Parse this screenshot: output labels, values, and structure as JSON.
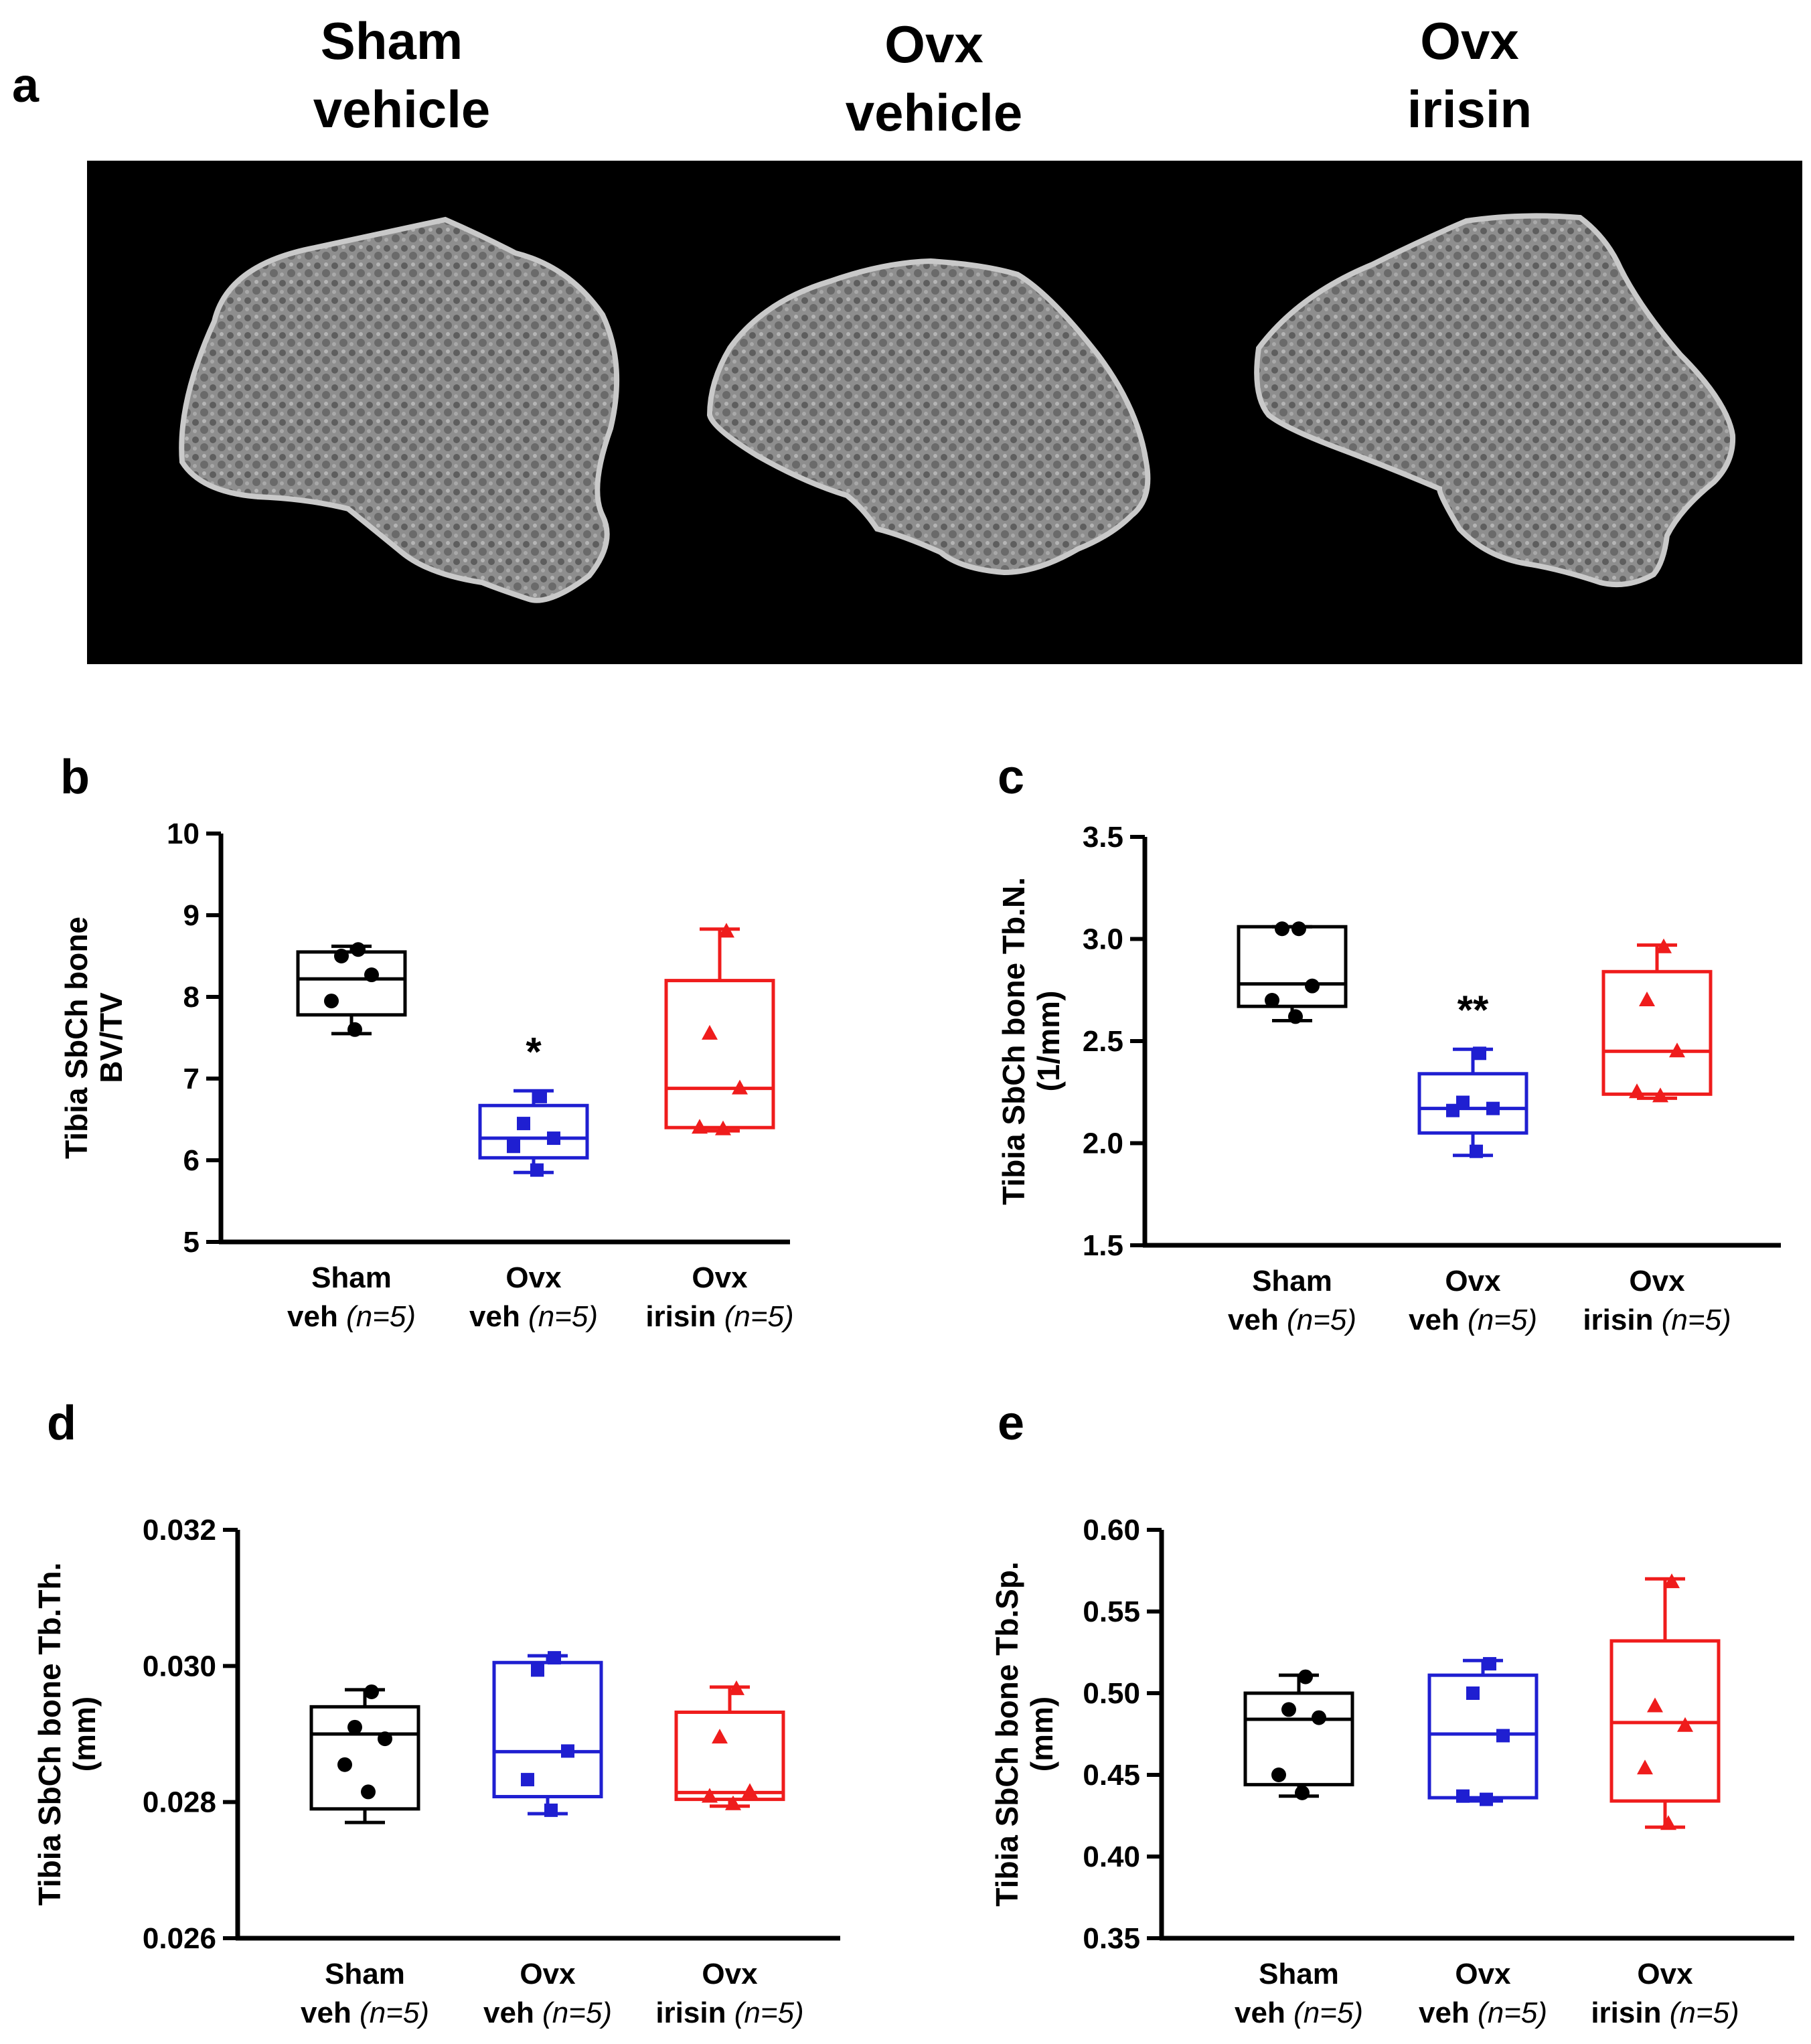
{
  "panel_a": {
    "letter": "a",
    "columns": [
      {
        "line1": "Sham",
        "line2": "vehicle"
      },
      {
        "line1": "Ovx",
        "line2": "vehicle"
      },
      {
        "line1": "Ovx",
        "line2": "irisin"
      }
    ]
  },
  "colors": {
    "sham": "#000000",
    "ovx_veh": "#1f1fd1",
    "ovx_irisin": "#ef1c1c"
  },
  "chart_data": [
    {
      "id": "b",
      "letter": "b",
      "type": "box",
      "ylabel_lines": [
        "Tibia SbCh bone",
        "BV/TV"
      ],
      "ylim": [
        5,
        10
      ],
      "yticks": [
        5,
        6,
        7,
        8,
        9,
        10
      ],
      "ytick_labels": [
        "5",
        "6",
        "7",
        "8",
        "9",
        "10"
      ],
      "groups": [
        {
          "line1": "Sham",
          "line2": "veh",
          "n": "(n=5)",
          "color": "#000000",
          "marker": "circle",
          "box": {
            "min": 7.55,
            "q1": 7.78,
            "median": 8.22,
            "q3": 8.55,
            "max": 8.62
          },
          "points": [
            8.58,
            8.5,
            8.27,
            7.95,
            7.6
          ],
          "annotation": ""
        },
        {
          "line1": "Ovx",
          "line2": "veh",
          "n": "(n=5)",
          "color": "#1f1fd1",
          "marker": "square",
          "box": {
            "min": 5.85,
            "q1": 6.03,
            "median": 6.27,
            "q3": 6.67,
            "max": 6.85
          },
          "points": [
            6.78,
            6.45,
            6.27,
            6.17,
            5.88
          ],
          "annotation": "*"
        },
        {
          "line1": "Ovx",
          "line2": "irisin",
          "n": "(n=5)",
          "color": "#ef1c1c",
          "marker": "triangle",
          "box": {
            "min": 6.36,
            "q1": 6.4,
            "median": 6.88,
            "q3": 8.2,
            "max": 8.83
          },
          "points": [
            8.8,
            7.55,
            6.88,
            6.4,
            6.38
          ],
          "annotation": ""
        }
      ]
    },
    {
      "id": "c",
      "letter": "c",
      "type": "box",
      "ylabel_lines": [
        "Tibia SbCh bone Tb.N.",
        "(1/mm)"
      ],
      "ylim": [
        1.5,
        3.5
      ],
      "yticks": [
        1.5,
        2.0,
        2.5,
        3.0,
        3.5
      ],
      "ytick_labels": [
        "1.5",
        "2.0",
        "2.5",
        "3.0",
        "3.5"
      ],
      "groups": [
        {
          "line1": "Sham",
          "line2": "veh",
          "n": "(n=5)",
          "color": "#000000",
          "marker": "circle",
          "box": {
            "min": 2.6,
            "q1": 2.67,
            "median": 2.78,
            "q3": 3.06,
            "max": 3.06
          },
          "points": [
            3.05,
            3.05,
            2.77,
            2.7,
            2.62
          ],
          "annotation": ""
        },
        {
          "line1": "Ovx",
          "line2": "veh",
          "n": "(n=5)",
          "color": "#1f1fd1",
          "marker": "square",
          "box": {
            "min": 1.94,
            "q1": 2.05,
            "median": 2.17,
            "q3": 2.34,
            "max": 2.46
          },
          "points": [
            2.44,
            2.2,
            2.17,
            2.16,
            1.96
          ],
          "annotation": "**"
        },
        {
          "line1": "Ovx",
          "line2": "irisin",
          "n": "(n=5)",
          "color": "#ef1c1c",
          "marker": "triangle",
          "box": {
            "min": 2.22,
            "q1": 2.24,
            "median": 2.45,
            "q3": 2.84,
            "max": 2.97
          },
          "points": [
            2.96,
            2.7,
            2.45,
            2.25,
            2.23
          ],
          "annotation": ""
        }
      ]
    },
    {
      "id": "d",
      "letter": "d",
      "type": "box",
      "ylabel_lines": [
        "Tibia SbCh bone Tb.Th.",
        "(mm)"
      ],
      "ylim": [
        0.026,
        0.032
      ],
      "yticks": [
        0.026,
        0.028,
        0.03,
        0.032
      ],
      "ytick_labels": [
        "0.026",
        "0.028",
        "0.030",
        "0.032"
      ],
      "groups": [
        {
          "line1": "Sham",
          "line2": "veh",
          "n": "(n=5)",
          "color": "#000000",
          "marker": "circle",
          "box": {
            "min": 0.0277,
            "q1": 0.0279,
            "median": 0.029,
            "q3": 0.0294,
            "max": 0.02965
          },
          "points": [
            0.02962,
            0.0291,
            0.02893,
            0.02855,
            0.02815
          ],
          "annotation": ""
        },
        {
          "line1": "Ovx",
          "line2": "veh",
          "n": "(n=5)",
          "color": "#1f1fd1",
          "marker": "square",
          "box": {
            "min": 0.02783,
            "q1": 0.02808,
            "median": 0.02874,
            "q3": 0.03005,
            "max": 0.03015
          },
          "points": [
            0.03012,
            0.02994,
            0.02875,
            0.02833,
            0.02788
          ],
          "annotation": ""
        },
        {
          "line1": "Ovx",
          "line2": "irisin",
          "n": "(n=5)",
          "color": "#ef1c1c",
          "marker": "triangle",
          "box": {
            "min": 0.02794,
            "q1": 0.02804,
            "median": 0.02814,
            "q3": 0.02932,
            "max": 0.02969
          },
          "points": [
            0.02966,
            0.02895,
            0.02815,
            0.02808,
            0.02797
          ],
          "annotation": ""
        }
      ]
    },
    {
      "id": "e",
      "letter": "e",
      "type": "box",
      "ylabel_lines": [
        "Tibia SbCh bone Tb.Sp.",
        "(mm)"
      ],
      "ylim": [
        0.35,
        0.6
      ],
      "yticks": [
        0.35,
        0.4,
        0.45,
        0.5,
        0.55,
        0.6
      ],
      "ytick_labels": [
        "0.35",
        "0.40",
        "0.45",
        "0.50",
        "0.55",
        "0.60"
      ],
      "groups": [
        {
          "line1": "Sham",
          "line2": "veh",
          "n": "(n=5)",
          "color": "#000000",
          "marker": "circle",
          "box": {
            "min": 0.437,
            "q1": 0.444,
            "median": 0.484,
            "q3": 0.5,
            "max": 0.511
          },
          "points": [
            0.51,
            0.49,
            0.485,
            0.45,
            0.439
          ],
          "annotation": ""
        },
        {
          "line1": "Ovx",
          "line2": "veh",
          "n": "(n=5)",
          "color": "#1f1fd1",
          "marker": "square",
          "box": {
            "min": 0.434,
            "q1": 0.436,
            "median": 0.475,
            "q3": 0.511,
            "max": 0.52
          },
          "points": [
            0.518,
            0.5,
            0.474,
            0.437,
            0.435
          ],
          "annotation": ""
        },
        {
          "line1": "Ovx",
          "line2": "irisin",
          "n": "(n=5)",
          "color": "#ef1c1c",
          "marker": "triangle",
          "box": {
            "min": 0.418,
            "q1": 0.434,
            "median": 0.482,
            "q3": 0.532,
            "max": 0.57
          },
          "points": [
            0.568,
            0.492,
            0.48,
            0.454,
            0.42
          ],
          "annotation": ""
        }
      ]
    }
  ]
}
